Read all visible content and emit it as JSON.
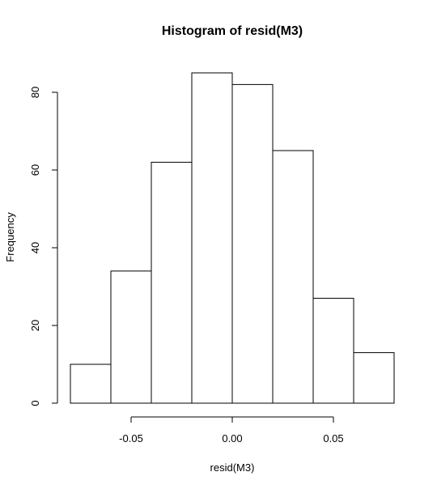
{
  "chart_data": {
    "type": "bar",
    "title": "Histogram of resid(M3)",
    "xlabel": "resid(M3)",
    "ylabel": "Frequency",
    "bins": [
      {
        "x0": -0.08,
        "x1": -0.06,
        "count": 10
      },
      {
        "x0": -0.06,
        "x1": -0.04,
        "count": 34
      },
      {
        "x0": -0.04,
        "x1": -0.02,
        "count": 62
      },
      {
        "x0": -0.02,
        "x1": 0.0,
        "count": 85
      },
      {
        "x0": 0.0,
        "x1": 0.02,
        "count": 82
      },
      {
        "x0": 0.02,
        "x1": 0.04,
        "count": 65
      },
      {
        "x0": 0.04,
        "x1": 0.06,
        "count": 27
      },
      {
        "x0": 0.06,
        "x1": 0.08,
        "count": 13
      }
    ],
    "x_ticks": [
      -0.05,
      0.0,
      0.05
    ],
    "x_tick_labels": [
      "-0.05",
      "0.00",
      "0.05"
    ],
    "y_ticks": [
      0,
      20,
      40,
      60,
      80
    ],
    "y_tick_labels": [
      "0",
      "20",
      "40",
      "60",
      "80"
    ],
    "xlim": [
      -0.08,
      0.08
    ],
    "ylim": [
      0,
      85
    ],
    "grid": false,
    "legend": "none"
  }
}
